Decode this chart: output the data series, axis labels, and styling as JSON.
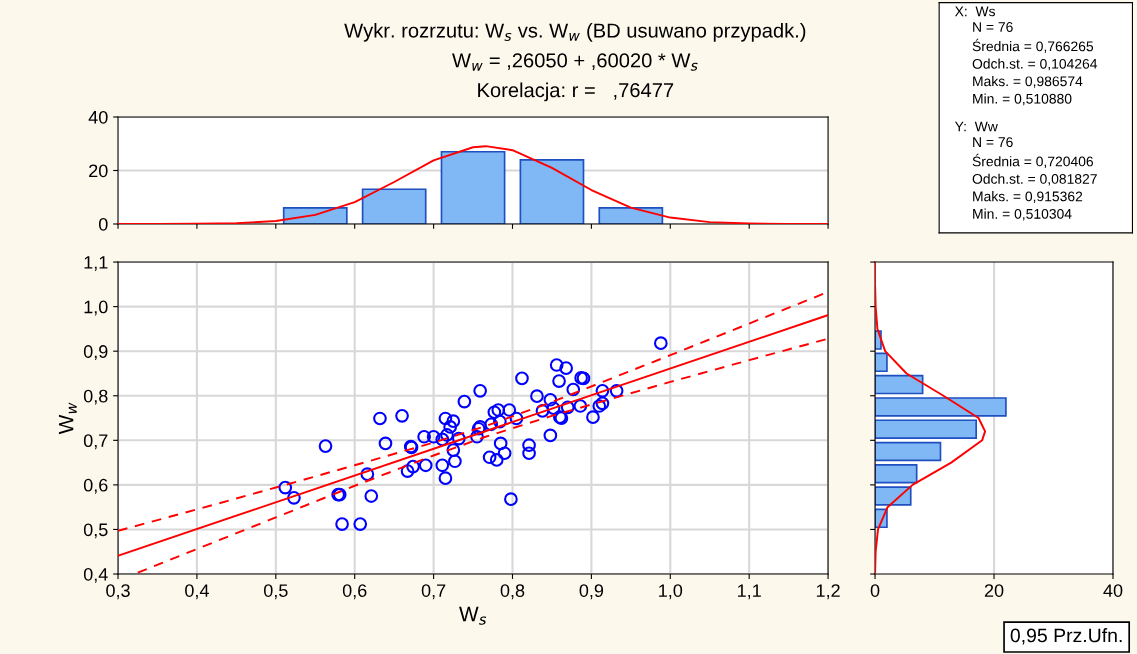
{
  "chart_data": [
    {
      "type": "scatter",
      "title": "Wykr. rozrzutu: W$_{s}$ vs. W$_{w}$ (BD usuwano przypadk.)\nW$_{w}$ = ,26050 + ,60020 * W$_{s}$\nKorelacja: r =   ,76477",
      "xlabel": "W$_{s}$",
      "ylabel": "W$_{w}$",
      "xlim": [
        0.3,
        1.2
      ],
      "ylim": [
        0.4,
        1.1
      ],
      "xticks": [
        {
          "value": 0.3,
          "label": "0,3"
        },
        {
          "value": 0.4,
          "label": "0,4"
        },
        {
          "value": 0.5,
          "label": "0,5"
        },
        {
          "value": 0.6,
          "label": "0,6"
        },
        {
          "value": 0.7,
          "label": "0,7"
        },
        {
          "value": 0.8,
          "label": "0,8"
        },
        {
          "value": 0.9,
          "label": "0,9"
        },
        {
          "value": 1.0,
          "label": "1,0"
        },
        {
          "value": 1.1,
          "label": "1,1"
        },
        {
          "value": 1.2,
          "label": "1,2"
        }
      ],
      "yticks": [
        {
          "value": 0.4,
          "label": "0,4"
        },
        {
          "value": 0.5,
          "label": "0,5"
        },
        {
          "value": 0.6,
          "label": "0,6"
        },
        {
          "value": 0.7,
          "label": "0,7"
        },
        {
          "value": 0.8,
          "label": "0,8"
        },
        {
          "value": 0.9,
          "label": "0,9"
        },
        {
          "value": 1.0,
          "label": "1,0"
        },
        {
          "value": 1.1,
          "label": "1,1"
        }
      ],
      "grid": true,
      "annotations": [
        "0,95 Prz.Ufn."
      ],
      "series": [
        {
          "type": "scatter",
          "color": "#0000ff",
          "marker": "circle",
          "x": [
            0.512,
            0.523,
            0.563,
            0.579,
            0.581,
            0.584,
            0.607,
            0.616,
            0.621,
            0.632,
            0.639,
            0.66,
            0.667,
            0.671,
            0.672,
            0.674,
            0.688,
            0.69,
            0.7,
            0.711,
            0.711,
            0.715,
            0.715,
            0.717,
            0.721,
            0.725,
            0.725,
            0.727,
            0.732,
            0.739,
            0.755,
            0.757,
            0.759,
            0.759,
            0.771,
            0.773,
            0.777,
            0.78,
            0.782,
            0.784,
            0.785,
            0.79,
            0.796,
            0.798,
            0.805,
            0.812,
            0.831,
            0.838,
            0.821,
            0.821,
            0.848,
            0.848,
            0.988,
            0.856,
            0.868,
            0.859,
            0.887,
            0.89,
            0.877,
            0.852,
            0.87,
            0.886,
            0.914,
            0.932,
            0.914,
            0.91,
            0.902,
            0.86,
            0.862
          ],
          "values": [
            0.594,
            0.571,
            0.687,
            0.578,
            0.578,
            0.512,
            0.512,
            0.624,
            0.575,
            0.749,
            0.693,
            0.755,
            0.631,
            0.686,
            0.684,
            0.641,
            0.708,
            0.644,
            0.708,
            0.702,
            0.644,
            0.615,
            0.749,
            0.712,
            0.73,
            0.743,
            0.678,
            0.653,
            0.704,
            0.787,
            0.708,
            0.726,
            0.811,
            0.73,
            0.662,
            0.736,
            0.763,
            0.656,
            0.768,
            0.742,
            0.693,
            0.671,
            0.768,
            0.568,
            0.749,
            0.839,
            0.799,
            0.766,
            0.689,
            0.671,
            0.791,
            0.711,
            0.918,
            0.869,
            0.862,
            0.833,
            0.84,
            0.839,
            0.814,
            0.772,
            0.774,
            0.777,
            0.811,
            0.811,
            0.783,
            0.777,
            0.752,
            0.752,
            0.75
          ]
        },
        {
          "type": "line",
          "color": "#ff0000",
          "line_style": "solid",
          "x": [
            0.3,
            1.2
          ],
          "values": [
            0.441,
            0.981
          ]
        },
        {
          "type": "line",
          "color": "#ff0000",
          "line_style": "dashed",
          "x": [
            0.3,
            0.4,
            0.5,
            0.6,
            0.7,
            0.766,
            0.85,
            1.0,
            1.1,
            1.2
          ],
          "values": [
            0.497,
            0.545,
            0.594,
            0.644,
            0.695,
            0.732,
            0.786,
            0.891,
            0.962,
            1.033
          ]
        },
        {
          "type": "line",
          "color": "#ff0000",
          "line_style": "dashed",
          "x": [
            0.325,
            0.4,
            0.5,
            0.6,
            0.7,
            0.766,
            0.85,
            1.0,
            1.1,
            1.2
          ],
          "values": [
            0.403,
            0.456,
            0.527,
            0.598,
            0.666,
            0.708,
            0.755,
            0.831,
            0.88,
            0.928
          ]
        }
      ]
    },
    {
      "type": "histogram",
      "xlim": [
        0.3,
        1.2
      ],
      "ylim": [
        0,
        40
      ],
      "yticks": [
        0,
        20,
        40
      ],
      "tick_labels": "y",
      "grid": "y",
      "bins": [
        0.5,
        0.6,
        0.7,
        0.8,
        0.9,
        1.0
      ],
      "values": [
        6,
        13,
        27,
        24,
        6
      ],
      "color": "#7fb8f5",
      "series": [
        {
          "type": "line",
          "color": "#ff0000",
          "x": [
            0.3,
            0.35,
            0.4,
            0.45,
            0.5,
            0.55,
            0.6,
            0.65,
            0.7,
            0.75,
            0.766,
            0.8,
            0.85,
            0.9,
            0.95,
            1.0,
            1.05,
            1.1,
            1.15,
            1.2
          ],
          "values": [
            0.0,
            0.0,
            0.1,
            0.3,
            1.1,
            3.4,
            8.2,
            15.7,
            23.8,
            28.7,
            29.1,
            27.6,
            21.0,
            12.7,
            6.1,
            2.4,
            0.7,
            0.2,
            0.0,
            0.0
          ]
        }
      ]
    },
    {
      "type": "histogram",
      "orientation": "horizontal",
      "xlim": [
        0,
        40
      ],
      "xticks": [
        0,
        20,
        40
      ],
      "ylim": [
        0.4,
        1.1
      ],
      "tick_labels": "x",
      "grid": "x",
      "bins": [
        0.5,
        0.55,
        0.6,
        0.65,
        0.7,
        0.75,
        0.8,
        0.85,
        0.9,
        0.95
      ],
      "values": [
        2,
        6,
        7,
        11,
        17,
        22,
        8,
        2,
        1
      ],
      "color": "#7fb8f5",
      "series": [
        {
          "type": "line",
          "color": "#ff0000",
          "x": [
            0.4,
            0.45,
            0.5,
            0.55,
            0.6,
            0.65,
            0.7,
            0.72,
            0.75,
            0.8,
            0.85,
            0.9,
            0.95,
            1.0,
            1.05,
            1.1
          ],
          "values": [
            0.0,
            0.1,
            0.5,
            2.1,
            6.3,
            12.8,
            18.0,
            18.5,
            17.4,
            11.5,
            5.3,
            1.7,
            0.4,
            0.1,
            0.0,
            0.0
          ]
        }
      ]
    },
    {
      "type": "other",
      "annotations": [
        "X:  Ws\nN = 76\nŚrednia = 0,766265\nOdch.st. = 0,104264\nMaks. = 0,986574\nMin. = 0,510880",
        "Y:  Ww\nN = 76\nŚrednia = 0,720406\nOdch.st. = 0,081827\nMaks. = 0,915362\nMin. = 0,510304"
      ]
    }
  ]
}
